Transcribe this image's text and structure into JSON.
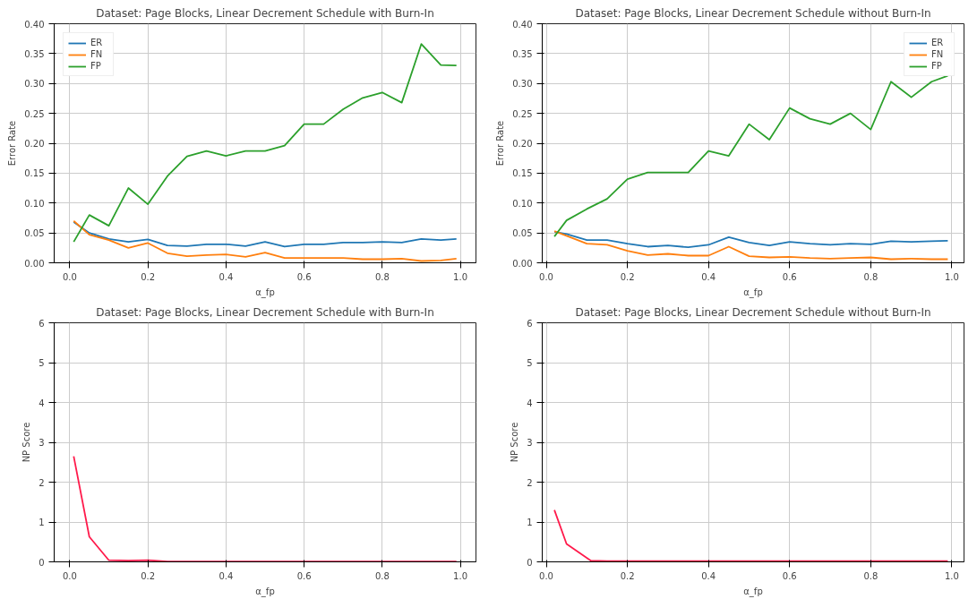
{
  "chart_data": [
    {
      "type": "line",
      "title": "Dataset: Page Blocks, Linear Decrement Schedule with Burn-In",
      "xlabel": "α_fp",
      "ylabel": "Error Rate",
      "x": [
        0.01,
        0.05,
        0.1,
        0.15,
        0.2,
        0.25,
        0.3,
        0.35,
        0.4,
        0.45,
        0.5,
        0.55,
        0.6,
        0.65,
        0.7,
        0.75,
        0.8,
        0.85,
        0.9,
        0.95,
        0.99
      ],
      "series": [
        {
          "name": "ER",
          "color": "#1f77b4",
          "values": [
            0.068,
            0.05,
            0.04,
            0.035,
            0.039,
            0.029,
            0.028,
            0.031,
            0.031,
            0.028,
            0.035,
            0.027,
            0.031,
            0.031,
            0.034,
            0.034,
            0.035,
            0.034,
            0.04,
            0.038,
            0.04
          ]
        },
        {
          "name": "FN",
          "color": "#ff7f0e",
          "values": [
            0.07,
            0.047,
            0.038,
            0.025,
            0.033,
            0.016,
            0.011,
            0.013,
            0.014,
            0.01,
            0.017,
            0.008,
            0.008,
            0.008,
            0.008,
            0.006,
            0.006,
            0.007,
            0.003,
            0.004,
            0.007
          ]
        },
        {
          "name": "FP",
          "color": "#2ca02c",
          "values": [
            0.035,
            0.08,
            0.062,
            0.125,
            0.098,
            0.145,
            0.178,
            0.187,
            0.179,
            0.187,
            0.187,
            0.196,
            0.232,
            0.232,
            0.257,
            0.276,
            0.285,
            0.268,
            0.366,
            0.331,
            0.33
          ]
        }
      ],
      "xlim": [
        -0.04,
        1.04
      ],
      "xticks": [
        {
          "value": 0,
          "label": "0.0"
        },
        {
          "value": 0.2,
          "label": "0.2"
        },
        {
          "value": 0.4,
          "label": "0.4"
        },
        {
          "value": 0.6,
          "label": "0.6"
        },
        {
          "value": 0.8,
          "label": "0.8"
        },
        {
          "value": 1,
          "label": "1.0"
        }
      ],
      "ylim": [
        0,
        0.4
      ],
      "yticks": [
        {
          "value": 0,
          "label": "0.00"
        },
        {
          "value": 0.05,
          "label": "0.05"
        },
        {
          "value": 0.1,
          "label": "0.10"
        },
        {
          "value": 0.15,
          "label": "0.15"
        },
        {
          "value": 0.2,
          "label": "0.20"
        },
        {
          "value": 0.25,
          "label": "0.25"
        },
        {
          "value": 0.3,
          "label": "0.30"
        },
        {
          "value": 0.35,
          "label": "0.35"
        },
        {
          "value": 0.4,
          "label": "0.40"
        }
      ],
      "grid": true,
      "legend": "top left"
    },
    {
      "type": "line",
      "title": "Dataset: Page Blocks, Linear Decrement Schedule without Burn-In",
      "xlabel": "α_fp",
      "ylabel": "Error Rate",
      "x": [
        0.02,
        0.05,
        0.1,
        0.15,
        0.2,
        0.25,
        0.3,
        0.35,
        0.4,
        0.45,
        0.5,
        0.55,
        0.6,
        0.65,
        0.7,
        0.75,
        0.8,
        0.85,
        0.9,
        0.95,
        0.99
      ],
      "series": [
        {
          "name": "ER",
          "color": "#1f77b4",
          "values": [
            0.052,
            0.048,
            0.038,
            0.038,
            0.032,
            0.027,
            0.029,
            0.026,
            0.03,
            0.043,
            0.034,
            0.029,
            0.035,
            0.032,
            0.03,
            0.032,
            0.031,
            0.036,
            0.035,
            0.036,
            0.037
          ]
        },
        {
          "name": "FN",
          "color": "#ff7f0e",
          "values": [
            0.053,
            0.045,
            0.032,
            0.03,
            0.02,
            0.013,
            0.015,
            0.012,
            0.012,
            0.027,
            0.011,
            0.009,
            0.01,
            0.008,
            0.007,
            0.008,
            0.009,
            0.006,
            0.007,
            0.006,
            0.006
          ]
        },
        {
          "name": "FP",
          "color": "#2ca02c",
          "values": [
            0.044,
            0.071,
            0.09,
            0.107,
            0.14,
            0.151,
            0.151,
            0.151,
            0.187,
            0.179,
            0.232,
            0.206,
            0.259,
            0.241,
            0.232,
            0.25,
            0.223,
            0.303,
            0.277,
            0.303,
            0.313
          ]
        }
      ],
      "xlim": [
        -0.01,
        1.03
      ],
      "xticks": [
        {
          "value": 0,
          "label": "0.0"
        },
        {
          "value": 0.2,
          "label": "0.2"
        },
        {
          "value": 0.4,
          "label": "0.4"
        },
        {
          "value": 0.6,
          "label": "0.6"
        },
        {
          "value": 0.8,
          "label": "0.8"
        },
        {
          "value": 1,
          "label": "1.0"
        }
      ],
      "ylim": [
        0,
        0.4
      ],
      "yticks": [
        {
          "value": 0,
          "label": "0.00"
        },
        {
          "value": 0.05,
          "label": "0.05"
        },
        {
          "value": 0.1,
          "label": "0.10"
        },
        {
          "value": 0.15,
          "label": "0.15"
        },
        {
          "value": 0.2,
          "label": "0.20"
        },
        {
          "value": 0.25,
          "label": "0.25"
        },
        {
          "value": 0.3,
          "label": "0.30"
        },
        {
          "value": 0.35,
          "label": "0.35"
        },
        {
          "value": 0.4,
          "label": "0.40"
        }
      ],
      "grid": true,
      "legend": "top right"
    },
    {
      "type": "line",
      "title": "Dataset: Page Blocks, Linear Decrement Schedule with Burn-In",
      "xlabel": "α_fp",
      "ylabel": "NP Score",
      "x": [
        0.01,
        0.05,
        0.1,
        0.15,
        0.2,
        0.25,
        0.3,
        0.35,
        0.4,
        0.45,
        0.5,
        0.55,
        0.6,
        0.65,
        0.7,
        0.75,
        0.8,
        0.85,
        0.9,
        0.95,
        0.99
      ],
      "series": [
        {
          "color": "#ff1a4b",
          "values": [
            2.65,
            0.63,
            0.04,
            0.03,
            0.04,
            0.01,
            0.01,
            0.01,
            0.01,
            0.01,
            0.01,
            0.01,
            0.01,
            0.01,
            0.01,
            0.01,
            0.01,
            0.01,
            0.01,
            0.01,
            0.01
          ]
        }
      ],
      "xlim": [
        -0.04,
        1.04
      ],
      "xticks": [
        {
          "value": 0,
          "label": "0.0"
        },
        {
          "value": 0.2,
          "label": "0.2"
        },
        {
          "value": 0.4,
          "label": "0.4"
        },
        {
          "value": 0.6,
          "label": "0.6"
        },
        {
          "value": 0.8,
          "label": "0.8"
        },
        {
          "value": 1,
          "label": "1.0"
        }
      ],
      "ylim": [
        0,
        6
      ],
      "yticks": [
        0,
        1,
        2,
        3,
        4,
        5,
        6
      ],
      "grid": true
    },
    {
      "type": "line",
      "title": "Dataset: Page Blocks, Linear Decrement Schedule without Burn-In",
      "xlabel": "α_fp",
      "ylabel": "NP Score",
      "x": [
        0.02,
        0.05,
        0.11,
        0.15,
        0.2,
        0.25,
        0.3,
        0.35,
        0.4,
        0.45,
        0.5,
        0.55,
        0.6,
        0.65,
        0.7,
        0.75,
        0.8,
        0.85,
        0.9,
        0.95,
        0.99
      ],
      "series": [
        {
          "color": "#ff1a4b",
          "values": [
            1.3,
            0.45,
            0.03,
            0.02,
            0.02,
            0.02,
            0.02,
            0.02,
            0.02,
            0.02,
            0.02,
            0.02,
            0.02,
            0.02,
            0.02,
            0.02,
            0.02,
            0.02,
            0.02,
            0.02,
            0.02
          ]
        }
      ],
      "xlim": [
        -0.01,
        1.03
      ],
      "xticks": [
        {
          "value": 0,
          "label": "0.0"
        },
        {
          "value": 0.2,
          "label": "0.2"
        },
        {
          "value": 0.4,
          "label": "0.4"
        },
        {
          "value": 0.6,
          "label": "0.6"
        },
        {
          "value": 0.8,
          "label": "0.8"
        },
        {
          "value": 1,
          "label": "1.0"
        }
      ],
      "ylim": [
        0,
        6
      ],
      "yticks": [
        0,
        1,
        2,
        3,
        4,
        5,
        6
      ],
      "grid": true
    }
  ]
}
